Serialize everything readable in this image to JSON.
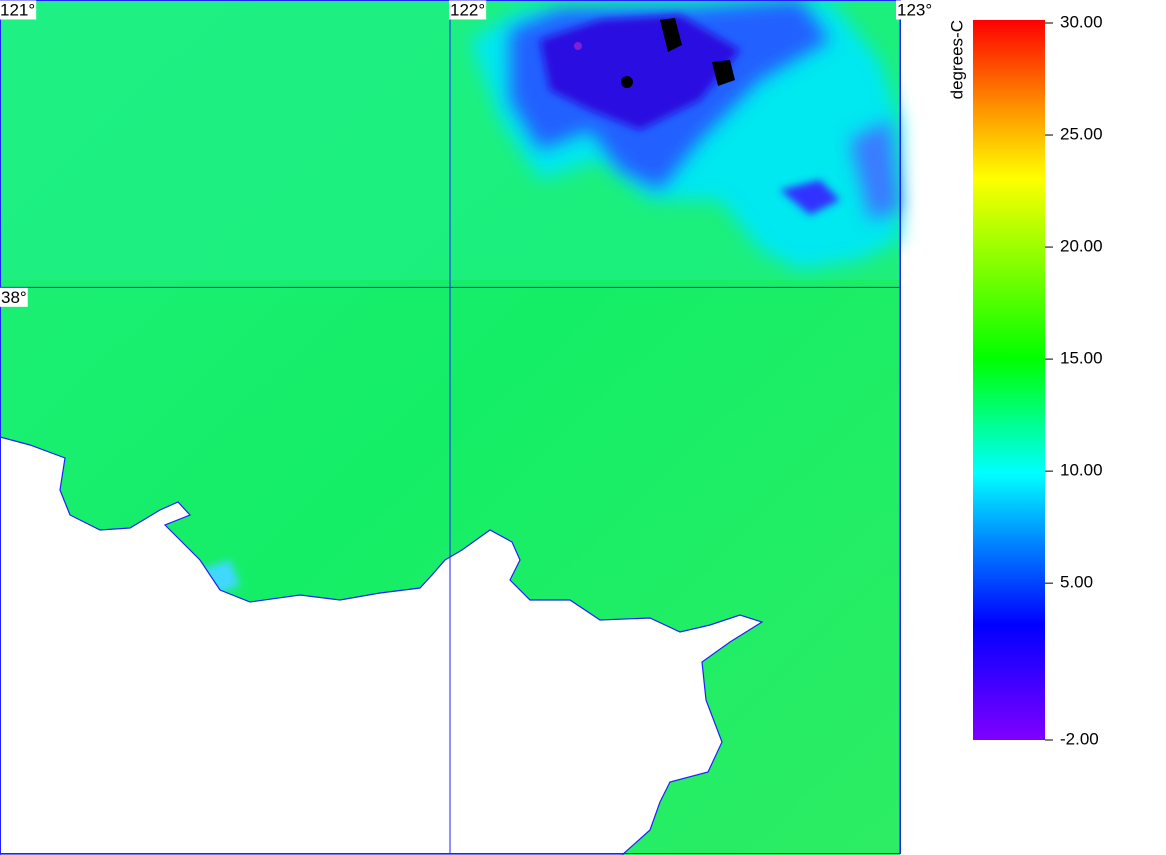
{
  "map": {
    "lonlim": [
      121,
      123
    ],
    "latlim": [
      36.74,
      38.64
    ],
    "graticule": {
      "lon": [
        {
          "value": 121,
          "label": "121°"
        },
        {
          "value": 122,
          "label": "122°"
        },
        {
          "value": 123,
          "label": "123°"
        }
      ],
      "lat": [
        {
          "value": 38,
          "label": "38°"
        }
      ]
    }
  },
  "colorbar": {
    "title": "degrees-C",
    "lim": [
      -2,
      30
    ],
    "ticks": [
      {
        "value": 30,
        "label": "30.00"
      },
      {
        "value": 25,
        "label": "25.00"
      },
      {
        "value": 20,
        "label": "20.00"
      },
      {
        "value": 15,
        "label": "15.00"
      },
      {
        "value": 10,
        "label": "10.00"
      },
      {
        "value": 5,
        "label": "5.00"
      },
      {
        "value": -2,
        "label": "-2.00"
      }
    ]
  }
}
